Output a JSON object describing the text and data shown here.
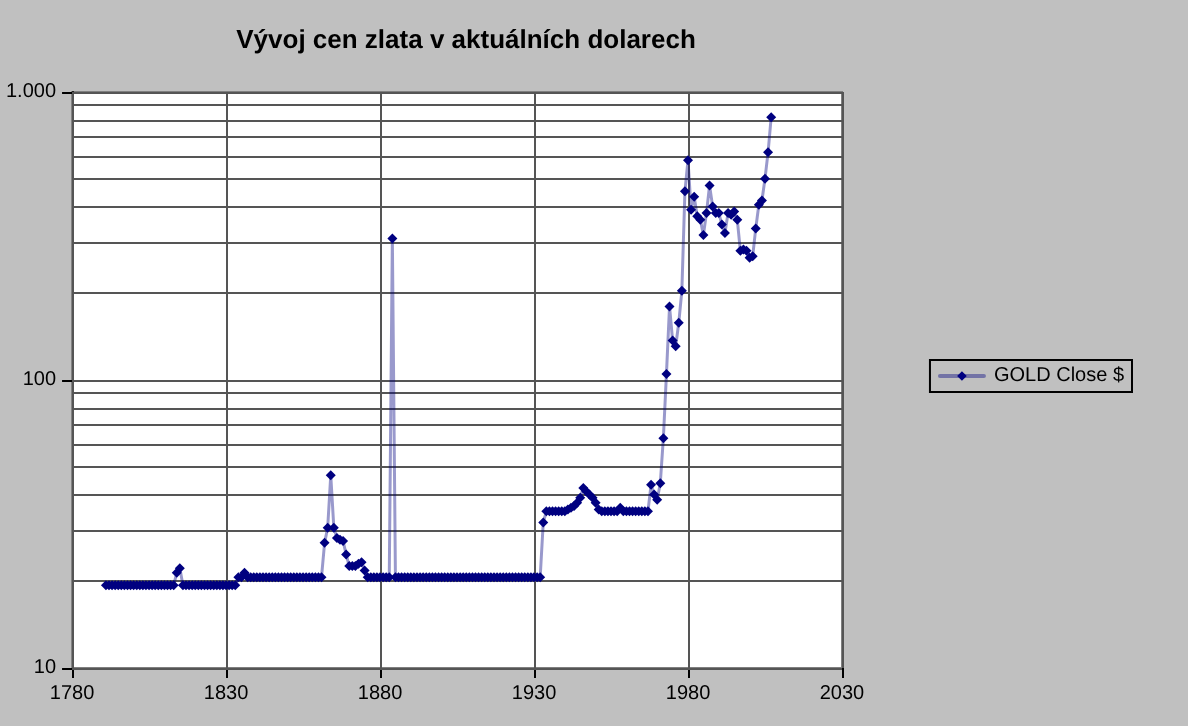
{
  "chart_data": {
    "type": "line",
    "title": "Vývoj cen zlata v aktuálních dolarech",
    "marker": "diamond",
    "grid": true,
    "legend": "right",
    "log": "y",
    "xlim": [
      1780,
      2030
    ],
    "xticks": [
      1780,
      1830,
      1880,
      1930,
      1980,
      2030
    ],
    "ylim": [
      10,
      1000
    ],
    "yticks": [
      10,
      {
        "value": 20,
        "label": null
      },
      {
        "value": 30,
        "label": null
      },
      {
        "value": 40,
        "label": null
      },
      {
        "value": 50,
        "label": null
      },
      {
        "value": 60,
        "label": null
      },
      {
        "value": 70,
        "label": null
      },
      {
        "value": 80,
        "label": null
      },
      {
        "value": 90,
        "label": null
      },
      100,
      {
        "value": 200,
        "label": null
      },
      {
        "value": 300,
        "label": null
      },
      {
        "value": 400,
        "label": null
      },
      {
        "value": 500,
        "label": null
      },
      {
        "value": 600,
        "label": null
      },
      {
        "value": 700,
        "label": null
      },
      {
        "value": 800,
        "label": null
      },
      {
        "value": 900,
        "label": null
      },
      {
        "value": 1000,
        "label": "1.000"
      }
    ],
    "x": [
      1791,
      1792,
      1793,
      1794,
      1795,
      1796,
      1797,
      1798,
      1799,
      1800,
      1801,
      1802,
      1803,
      1804,
      1805,
      1806,
      1807,
      1808,
      1809,
      1810,
      1811,
      1812,
      1813,
      1814,
      1815,
      1816,
      1817,
      1818,
      1819,
      1820,
      1821,
      1822,
      1823,
      1824,
      1825,
      1826,
      1827,
      1828,
      1829,
      1830,
      1831,
      1832,
      1833,
      1834,
      1835,
      1836,
      1837,
      1838,
      1839,
      1840,
      1841,
      1842,
      1843,
      1844,
      1845,
      1846,
      1847,
      1848,
      1849,
      1850,
      1851,
      1852,
      1853,
      1854,
      1855,
      1856,
      1857,
      1858,
      1859,
      1860,
      1861,
      1862,
      1863,
      1864,
      1865,
      1866,
      1867,
      1868,
      1869,
      1870,
      1871,
      1872,
      1873,
      1874,
      1875,
      1876,
      1877,
      1878,
      1879,
      1880,
      1881,
      1882,
      1883,
      1884,
      1885,
      1886,
      1887,
      1888,
      1889,
      1890,
      1891,
      1892,
      1893,
      1894,
      1895,
      1896,
      1897,
      1898,
      1899,
      1900,
      1901,
      1902,
      1903,
      1904,
      1905,
      1906,
      1907,
      1908,
      1909,
      1910,
      1911,
      1912,
      1913,
      1914,
      1915,
      1916,
      1917,
      1918,
      1919,
      1920,
      1921,
      1922,
      1923,
      1924,
      1925,
      1926,
      1927,
      1928,
      1929,
      1930,
      1931,
      1932,
      1933,
      1934,
      1935,
      1936,
      1937,
      1938,
      1939,
      1940,
      1941,
      1942,
      1943,
      1944,
      1945,
      1946,
      1947,
      1948,
      1949,
      1950,
      1951,
      1952,
      1953,
      1954,
      1955,
      1956,
      1957,
      1958,
      1959,
      1960,
      1961,
      1962,
      1963,
      1964,
      1965,
      1966,
      1967,
      1968,
      1969,
      1970,
      1971,
      1972,
      1973,
      1974,
      1975,
      1976,
      1977,
      1978,
      1979,
      1980,
      1981,
      1982,
      1983,
      1984,
      1985,
      1986,
      1987,
      1988,
      1989,
      1990,
      1991,
      1992,
      1993,
      1994,
      1995,
      1996,
      1997,
      1998,
      1999,
      2000,
      2001,
      2002,
      2003,
      2004,
      2005,
      2006,
      2007
    ],
    "series": [
      {
        "name": "GOLD Close $",
        "color": "#000080",
        "values": [
          19.39,
          19.39,
          19.39,
          19.39,
          19.39,
          19.39,
          19.39,
          19.39,
          19.39,
          19.39,
          19.39,
          19.39,
          19.39,
          19.39,
          19.39,
          19.39,
          19.39,
          19.39,
          19.39,
          19.39,
          19.39,
          19.39,
          19.39,
          21.4,
          22.2,
          19.39,
          19.39,
          19.39,
          19.39,
          19.39,
          19.39,
          19.39,
          19.39,
          19.39,
          19.39,
          19.39,
          19.39,
          19.39,
          19.39,
          19.39,
          19.39,
          19.39,
          19.39,
          20.67,
          20.67,
          21.4,
          20.67,
          20.67,
          20.67,
          20.67,
          20.67,
          20.67,
          20.67,
          20.67,
          20.67,
          20.67,
          20.67,
          20.67,
          20.67,
          20.67,
          20.67,
          20.67,
          20.67,
          20.67,
          20.67,
          20.67,
          20.67,
          20.67,
          20.67,
          20.67,
          20.67,
          27.2,
          30.7,
          46.7,
          30.7,
          28.3,
          27.9,
          27.6,
          24.8,
          22.6,
          22.6,
          22.6,
          23.0,
          23.3,
          21.8,
          20.67,
          20.67,
          20.67,
          20.67,
          20.67,
          20.67,
          20.67,
          20.67,
          310,
          20.67,
          20.67,
          20.67,
          20.67,
          20.67,
          20.67,
          20.67,
          20.67,
          20.67,
          20.67,
          20.67,
          20.67,
          20.67,
          20.67,
          20.67,
          20.67,
          20.67,
          20.67,
          20.67,
          20.67,
          20.67,
          20.67,
          20.67,
          20.67,
          20.67,
          20.67,
          20.67,
          20.67,
          20.67,
          20.67,
          20.67,
          20.67,
          20.67,
          20.67,
          20.67,
          20.67,
          20.67,
          20.67,
          20.67,
          20.67,
          20.67,
          20.67,
          20.67,
          20.67,
          20.67,
          20.67,
          20.67,
          20.67,
          32,
          35,
          35,
          35,
          35,
          35,
          35,
          35,
          35.5,
          36,
          36.5,
          37.5,
          39,
          42.2,
          41,
          40,
          39,
          37.5,
          35.5,
          35,
          35,
          35,
          35,
          35,
          35,
          36,
          35,
          35,
          35,
          35,
          35,
          35,
          35,
          35,
          35,
          43.3,
          40,
          38.4,
          43.8,
          62.8,
          105,
          180,
          137,
          131,
          158,
          204,
          452,
          580,
          390,
          433,
          370,
          360,
          319,
          380,
          474,
          400,
          380,
          380,
          347,
          324,
          380,
          375,
          385,
          360,
          281,
          284,
          281,
          266,
          269,
          336,
          406,
          420,
          500,
          618,
          817
        ]
      }
    ]
  }
}
